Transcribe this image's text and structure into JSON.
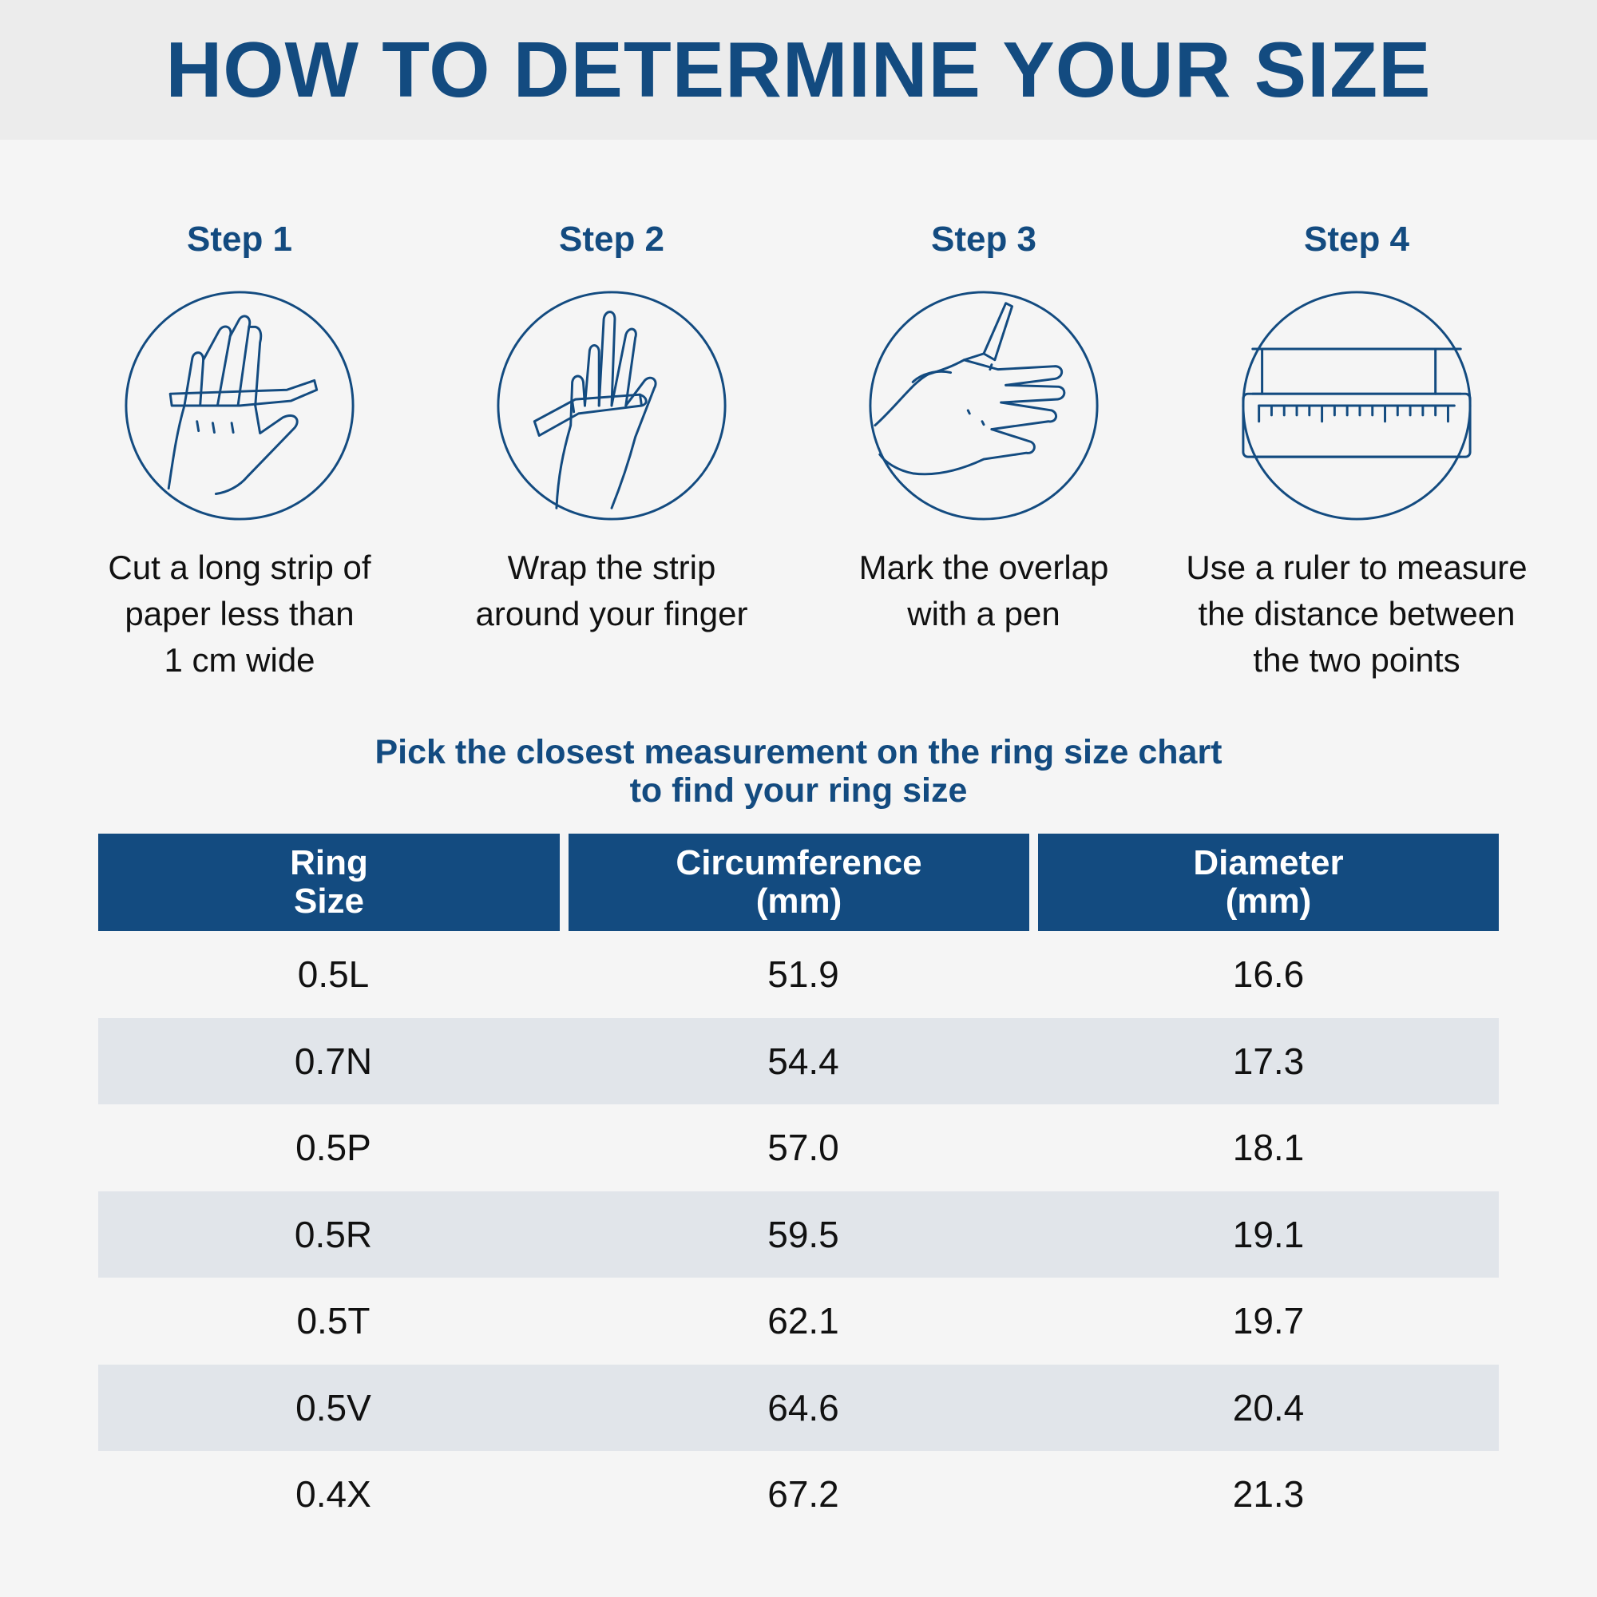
{
  "title": "HOW TO DETERMINE YOUR SIZE",
  "steps": [
    {
      "title": "Step 1",
      "description": "Cut a long strip of\npaper less than\n1 cm wide",
      "icon": "hand-cutting-strip-icon"
    },
    {
      "title": "Step 2",
      "description": "Wrap the strip\naround your finger",
      "icon": "hand-wrapping-strip-icon"
    },
    {
      "title": "Step 3",
      "description": "Mark the overlap\nwith a pen",
      "icon": "hand-marking-pen-icon"
    },
    {
      "title": "Step 4",
      "description": "Use a ruler to measure\nthe distance between\nthe two points",
      "icon": "ruler-icon"
    }
  ],
  "instruction": "Pick the closest measurement on the ring size chart\nto find your ring size",
  "table": {
    "headers": [
      "Ring\nSize",
      "Circumference\n(mm)",
      "Diameter\n(mm)"
    ],
    "rows": [
      [
        "0.5L",
        "51.9",
        "16.6"
      ],
      [
        "0.7N",
        "54.4",
        "17.3"
      ],
      [
        "0.5P",
        "57.0",
        "18.1"
      ],
      [
        "0.5R",
        "59.5",
        "19.1"
      ],
      [
        "0.5T",
        "62.1",
        "19.7"
      ],
      [
        "0.5V",
        "64.6",
        "20.4"
      ],
      [
        "0.4X",
        "67.2",
        "21.3"
      ]
    ]
  },
  "colors": {
    "accent": "#134b80",
    "header_bg": "#ececec",
    "row_alt": "#e1e5ea",
    "page_bg": "#f5f5f5"
  }
}
